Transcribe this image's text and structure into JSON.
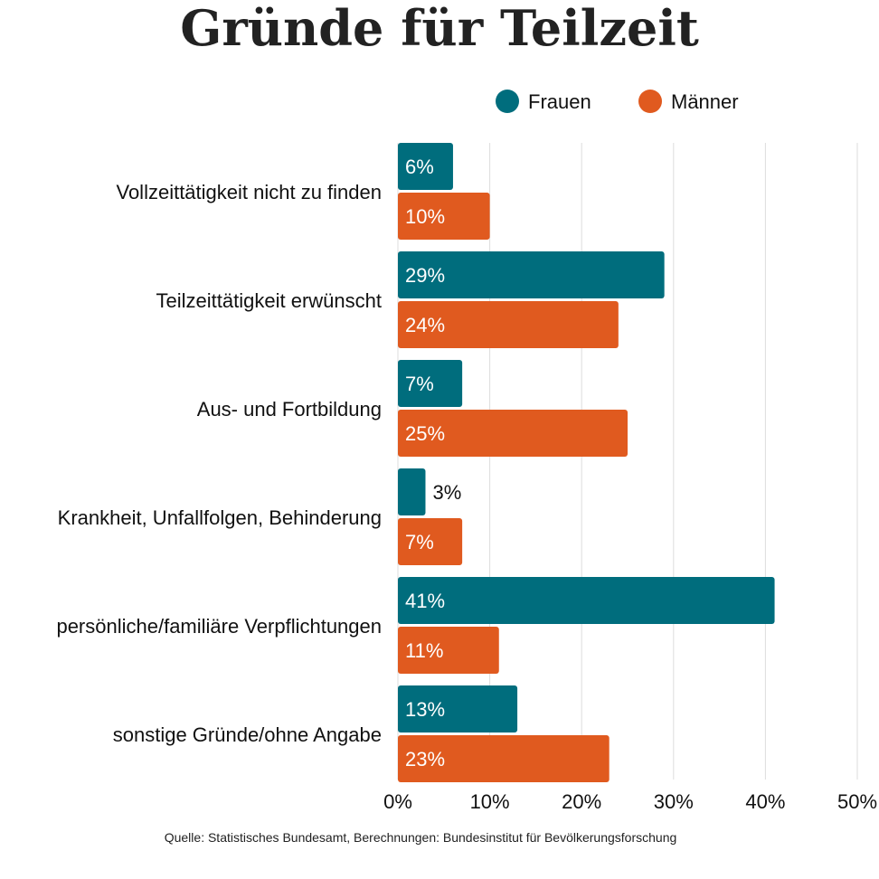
{
  "chart_data": {
    "type": "bar",
    "orientation": "horizontal",
    "title": "Gründe für Teilzeit",
    "source": "Quelle: Statistisches Bundesamt, Berechnungen: Bundesinstitut für Bevölkerungsforschung",
    "categories": [
      "Vollzeittätigkeit nicht zu finden",
      "Teilzeittätigkeit erwünscht",
      "Aus- und Fortbildung",
      "Krankheit, Unfallfolgen, Behinderung",
      "persönliche/familiäre Verpflichtungen",
      "sonstige Gründe/ohne Angabe"
    ],
    "series": [
      {
        "name": "Frauen",
        "color": "#006d7d",
        "values": [
          6,
          29,
          7,
          3,
          41,
          13
        ]
      },
      {
        "name": "Männer",
        "color": "#e05a1f",
        "values": [
          10,
          24,
          25,
          7,
          11,
          23
        ]
      }
    ],
    "xlim": [
      0,
      50
    ],
    "xticks": [
      0,
      10,
      20,
      30,
      40,
      50
    ],
    "tick_suffix": "%",
    "grid": true,
    "legend": "top-right"
  }
}
